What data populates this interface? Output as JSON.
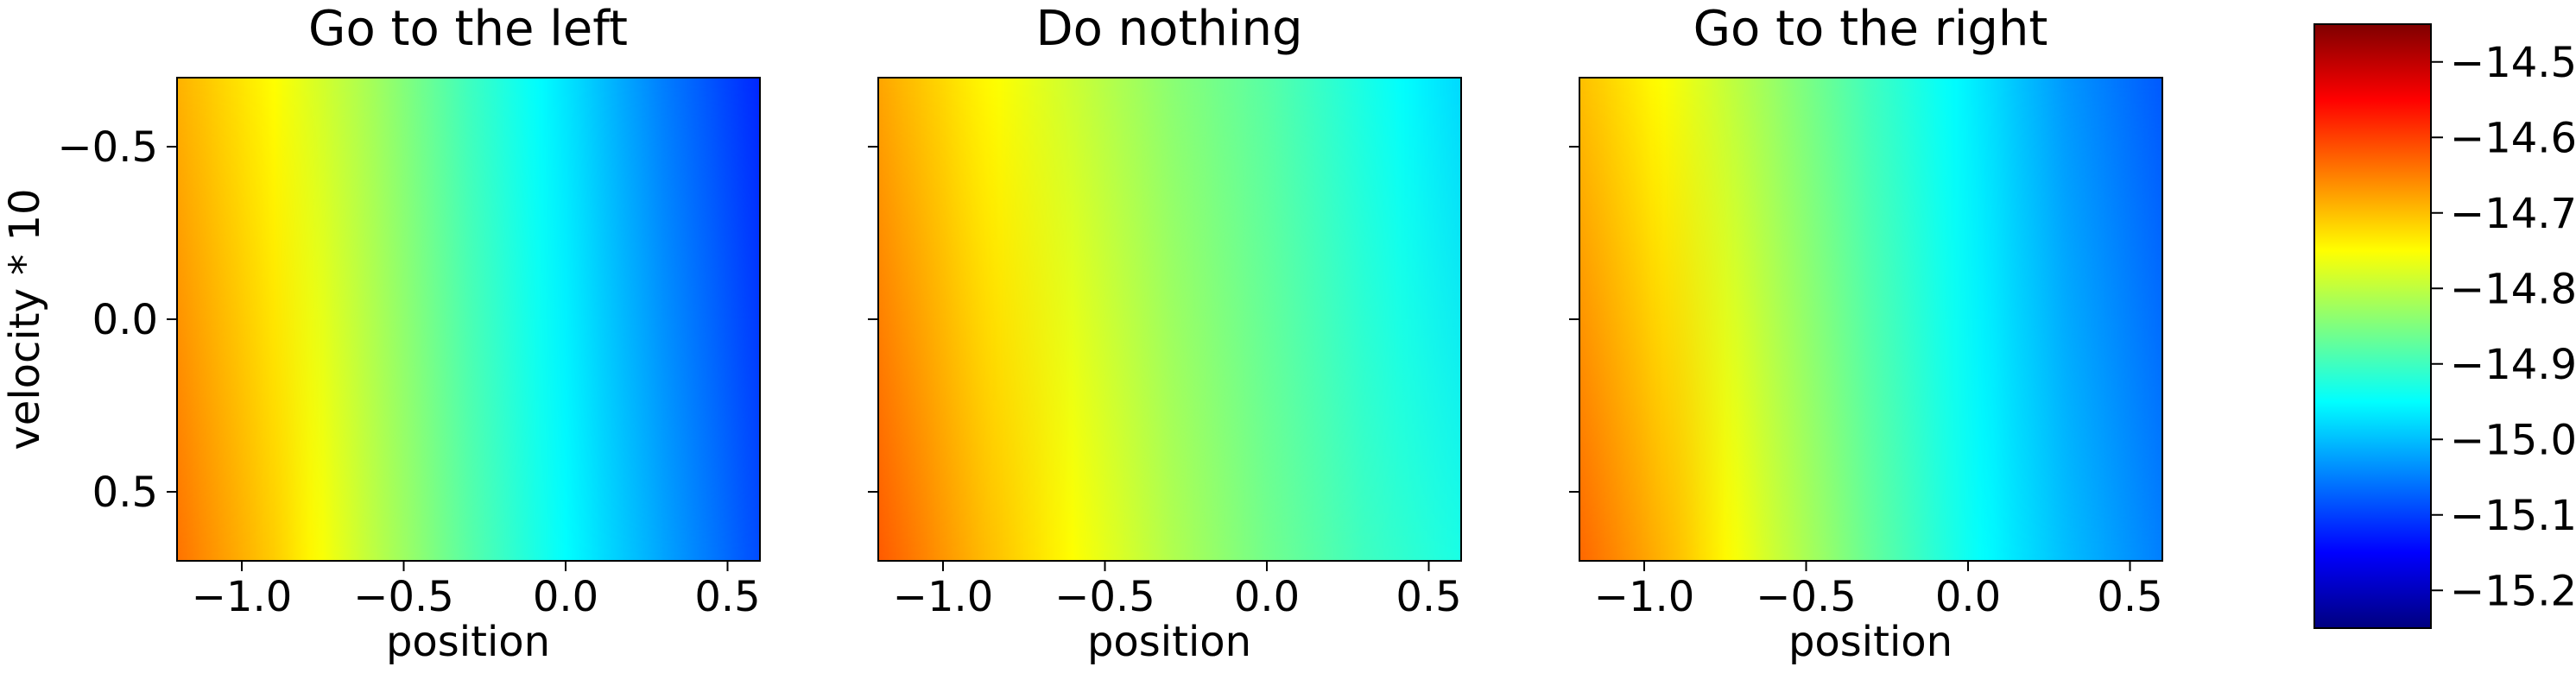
{
  "chart_data": [
    {
      "type": "heatmap",
      "title": "Go to the left",
      "xlabel": "position",
      "ylabel": "velocity * 10",
      "xlim": [
        -1.2,
        0.6
      ],
      "ylim": [
        0.7,
        -0.7
      ],
      "xticks": [
        -1.0,
        -0.5,
        0.0,
        0.5
      ],
      "yticks": [
        -0.5,
        0.0,
        0.5
      ],
      "xtick_labels": [
        "−1.0",
        "−0.5",
        "0.0",
        "0.5"
      ],
      "ytick_labels": [
        "−0.5",
        "0.0",
        "0.5"
      ],
      "field": {
        "positions": [
          -1.2,
          -0.9,
          -0.6,
          -0.3,
          0.0,
          0.3,
          0.6
        ],
        "values_at_velocity_min": [
          -14.69,
          -14.75,
          -14.82,
          -14.9,
          -14.97,
          -15.05,
          -15.12
        ],
        "values_at_velocity_max": [
          -14.64,
          -14.71,
          -14.8,
          -14.88,
          -14.95,
          -15.02,
          -15.09
        ]
      }
    },
    {
      "type": "heatmap",
      "title": "Do nothing",
      "xlabel": "position",
      "ylabel": "",
      "xlim": [
        -1.2,
        0.6
      ],
      "ylim": [
        0.7,
        -0.7
      ],
      "xticks": [
        -1.0,
        -0.5,
        0.0,
        0.5
      ],
      "yticks": [
        -0.5,
        0.0,
        0.5
      ],
      "xtick_labels": [
        "−1.0",
        "−0.5",
        "0.0",
        "0.5"
      ],
      "ytick_labels": [],
      "field": {
        "positions": [
          -1.2,
          -0.9,
          -0.6,
          -0.3,
          0.0,
          0.3,
          0.6
        ],
        "values_at_velocity_min": [
          -14.68,
          -14.74,
          -14.79,
          -14.84,
          -14.88,
          -14.93,
          -14.98
        ],
        "values_at_velocity_max": [
          -14.62,
          -14.69,
          -14.75,
          -14.81,
          -14.86,
          -14.9,
          -14.93
        ]
      }
    },
    {
      "type": "heatmap",
      "title": "Go to the right",
      "xlabel": "position",
      "ylabel": "",
      "xlim": [
        -1.2,
        0.6
      ],
      "ylim": [
        0.7,
        -0.7
      ],
      "xticks": [
        -1.0,
        -0.5,
        0.0,
        0.5
      ],
      "yticks": [
        -0.5,
        0.0,
        0.5
      ],
      "xtick_labels": [
        "−1.0",
        "−0.5",
        "0.0",
        "0.5"
      ],
      "ytick_labels": [],
      "field": {
        "positions": [
          -1.2,
          -0.9,
          -0.6,
          -0.3,
          0.0,
          0.3,
          0.6
        ],
        "values_at_velocity_min": [
          -14.7,
          -14.76,
          -14.83,
          -14.9,
          -14.96,
          -15.03,
          -15.08
        ],
        "values_at_velocity_max": [
          -14.63,
          -14.7,
          -14.79,
          -14.87,
          -14.94,
          -15.0,
          -15.05
        ]
      }
    }
  ],
  "colorbar": {
    "colormap": "jet",
    "range": [
      -15.25,
      -14.45
    ],
    "ticks": [
      -14.5,
      -14.6,
      -14.7,
      -14.8,
      -14.9,
      -15.0,
      -15.1,
      -15.2
    ],
    "tick_labels": [
      "−14.5",
      "−14.6",
      "−14.7",
      "−14.8",
      "−14.9",
      "−15.0",
      "−15.1",
      "−15.2"
    ],
    "stops": [
      "#00007f",
      "#0000ff",
      "#007fff",
      "#00ffff",
      "#7fff7f",
      "#ffff00",
      "#ff7f00",
      "#ff0000",
      "#7f0000"
    ]
  }
}
